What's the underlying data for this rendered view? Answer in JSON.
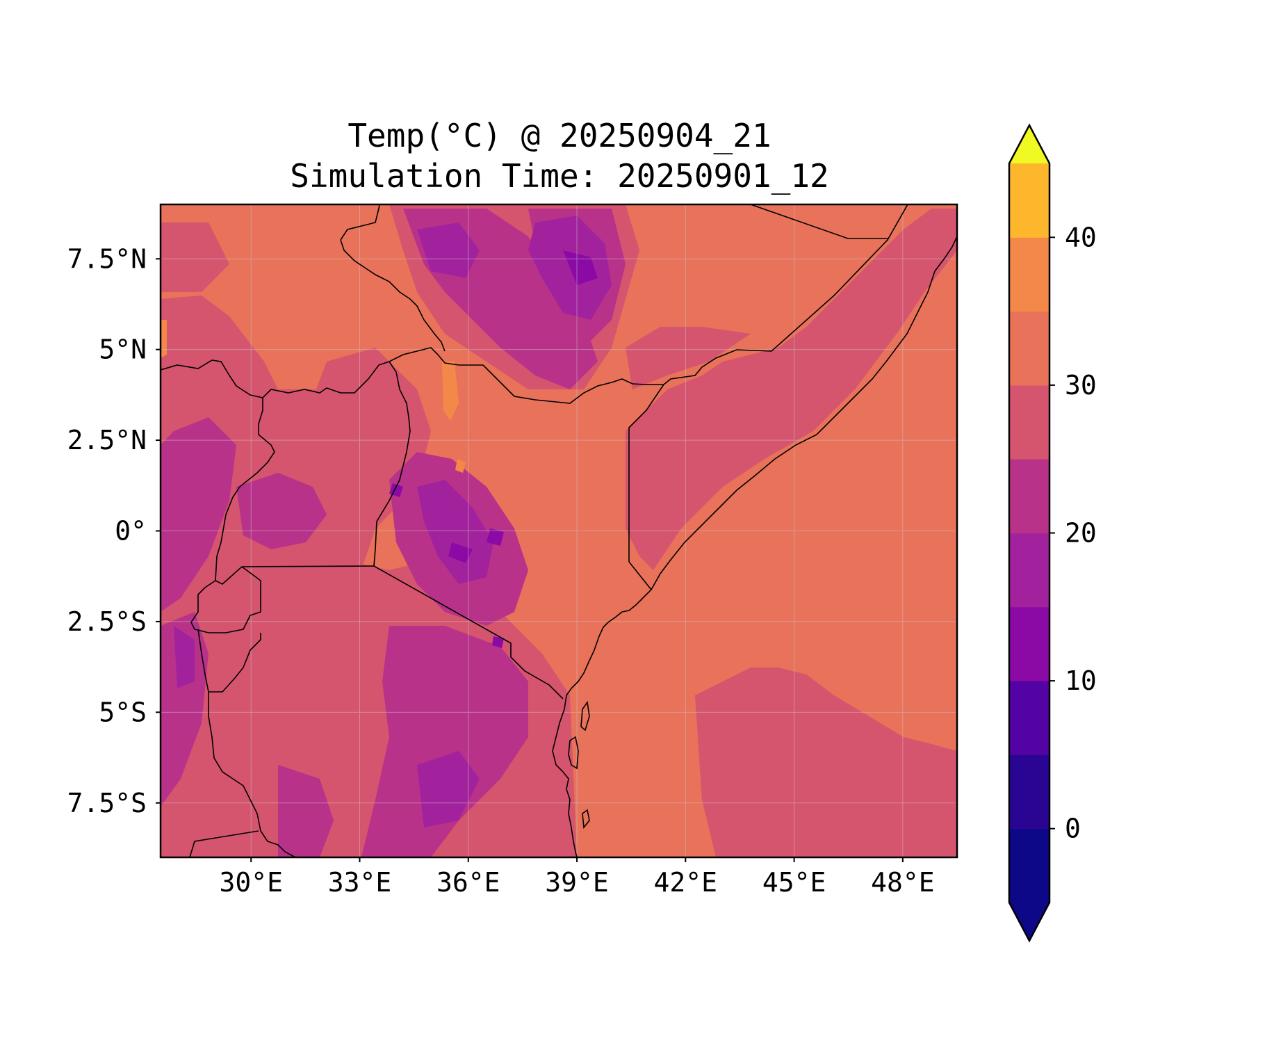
{
  "title": {
    "line1": "Temp(°C) @ 20250904_21",
    "line2": "Simulation Time: 20250901_12"
  },
  "chart_data": {
    "type": "heatmap",
    "variable": "Temp(°C)",
    "valid_time": "20250904_21",
    "simulation_time": "20250901_12",
    "colormap": "plasma",
    "xlim": [
      27.5,
      49.5
    ],
    "ylim": [
      -9.0,
      9.0
    ],
    "x_ticks": [
      {
        "value": 30,
        "label": "30°E"
      },
      {
        "value": 33,
        "label": "33°E"
      },
      {
        "value": 36,
        "label": "36°E"
      },
      {
        "value": 39,
        "label": "39°E"
      },
      {
        "value": 42,
        "label": "42°E"
      },
      {
        "value": 45,
        "label": "45°E"
      },
      {
        "value": 48,
        "label": "48°E"
      }
    ],
    "y_ticks": [
      {
        "value": 7.5,
        "label": "7.5°N"
      },
      {
        "value": 5,
        "label": "5°N"
      },
      {
        "value": 2.5,
        "label": "2.5°N"
      },
      {
        "value": 0,
        "label": "0°"
      },
      {
        "value": -2.5,
        "label": "2.5°S"
      },
      {
        "value": -5,
        "label": "5°S"
      },
      {
        "value": -7.5,
        "label": "7.5°S"
      }
    ],
    "grid": true,
    "colorbar": {
      "extend": "both",
      "levels": [
        -5,
        0,
        5,
        10,
        15,
        20,
        25,
        30,
        35,
        40,
        45
      ],
      "colors": [
        "#0d0887",
        "#2a0593",
        "#5302a3",
        "#8b0aa5",
        "#a2229e",
        "#b83289",
        "#d5546e",
        "#e8725a",
        "#f48849",
        "#feb72d",
        "#f3e226"
      ],
      "under_color": "#0d0887",
      "over_color": "#f0f921",
      "tick_labels": [
        {
          "value": 0,
          "label": "0"
        },
        {
          "value": 10,
          "label": "10"
        },
        {
          "value": 20,
          "label": "20"
        },
        {
          "value": 30,
          "label": "30"
        },
        {
          "value": 40,
          "label": "40"
        }
      ]
    }
  }
}
